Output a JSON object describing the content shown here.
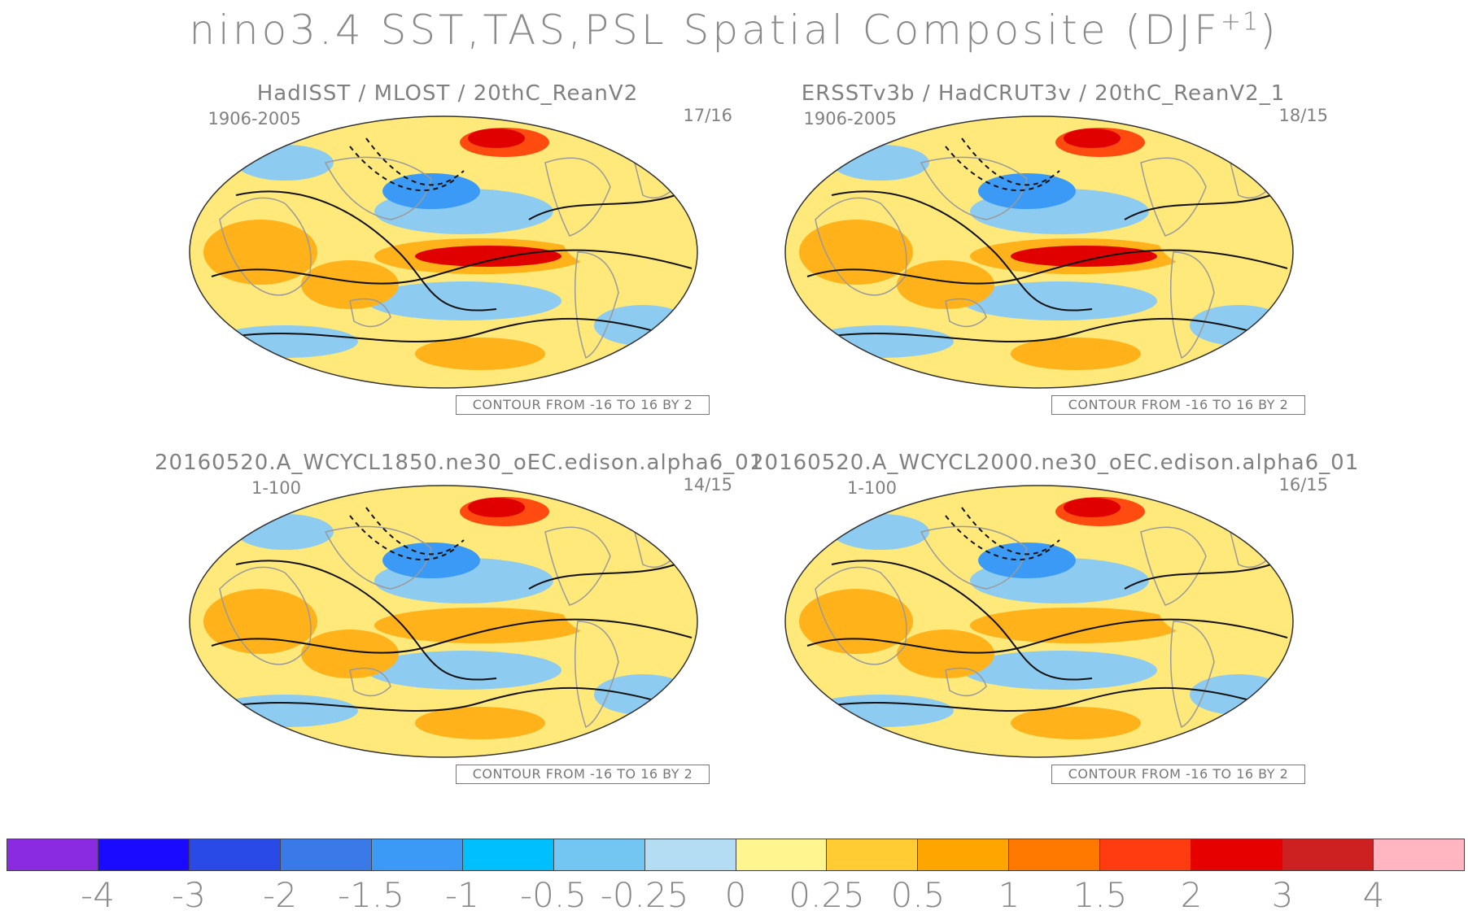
{
  "title": {
    "main": "nino3.4 SST,TAS,PSL Spatial Composite (DJF",
    "superscript": "+1",
    "close": ")"
  },
  "panels": [
    {
      "title": "HadISST / MLOST / 20thC_ReanV2",
      "period": "1906-2005",
      "ratio": "17/16",
      "contour": "CONTOUR FROM -16 TO 16 BY 2"
    },
    {
      "title": "ERSSTv3b / HadCRUT3v / 20thC_ReanV2_1",
      "period": "1906-2005",
      "ratio": "18/15",
      "contour": "CONTOUR FROM -16 TO 16 BY 2"
    },
    {
      "title": "20160520.A_WCYCL1850.ne30_oEC.edison.alpha6_01",
      "period": "1-100",
      "ratio": "14/15",
      "contour": "CONTOUR FROM -16 TO 16 BY 2"
    },
    {
      "title": "20160520.A_WCYCL2000.ne30_oEC.edison.alpha6_01",
      "period": "1-100",
      "ratio": "16/15",
      "contour": "CONTOUR FROM -16 TO 16 BY 2"
    }
  ],
  "colorbar": {
    "colors": [
      "#8a2be2",
      "#1a0aff",
      "#2a4ae8",
      "#3a7ae8",
      "#3a9af5",
      "#00bfff",
      "#74c6f2",
      "#b4dcf2",
      "#fff68f",
      "#ffcc33",
      "#ffa500",
      "#ff7800",
      "#ff3c10",
      "#e60000",
      "#cd2020",
      "#ffb6c1"
    ],
    "ticks": [
      "-4",
      "-3",
      "-2",
      "-1.5",
      "-1",
      "-0.5",
      "-0.25",
      "0",
      "0.25",
      "0.5",
      "1",
      "1.5",
      "2",
      "3",
      "4"
    ]
  },
  "map_colors": {
    "background": "#ffe97a",
    "cool": "#8ecbf0",
    "cold": "#3a9af5",
    "warm": "#ffb21a",
    "hot": "#ff4a10",
    "hottest": "#e00000",
    "land_outline": "#9a9a9a",
    "contour": "#111111"
  }
}
